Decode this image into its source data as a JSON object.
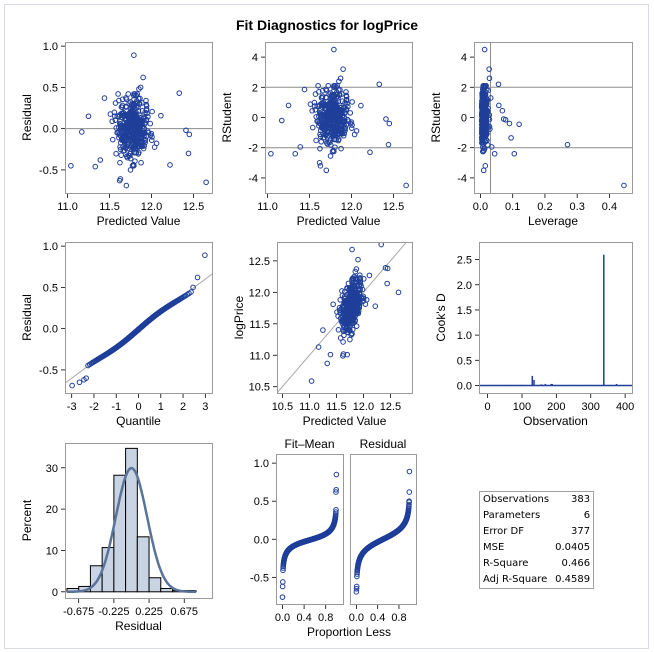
{
  "title": "Fit Diagnostics for logPrice",
  "colors": {
    "marker": "#1f3f9a",
    "ref": "#8c8c8c",
    "bar_fill": "#c8d3e3",
    "curve": "#5a7399",
    "spike": "#1f3f9a",
    "frame": "#9a9a9a"
  },
  "fit_statistics": [
    {
      "label": "Observations",
      "value": "383"
    },
    {
      "label": "Parameters",
      "value": "6"
    },
    {
      "label": "Error DF",
      "value": "377"
    },
    {
      "label": "MSE",
      "value": "0.0405"
    },
    {
      "label": "R-Square",
      "value": "0.466"
    },
    {
      "label": "Adj R-Square",
      "value": "0.4589"
    }
  ],
  "chart_data": [
    {
      "id": "residual-vs-predicted",
      "type": "scatter",
      "xlabel": "Predicted Value",
      "ylabel": "Residual",
      "xlim": [
        10.97,
        12.72
      ],
      "ylim": [
        -0.78,
        1.05
      ],
      "xticks": [
        "11.0",
        "11.5",
        "12.0",
        "12.5"
      ],
      "xtick_values": [
        11.0,
        11.5,
        12.0,
        12.5
      ],
      "yticks": [
        "-0.5",
        "0.0",
        "0.5",
        "1.0"
      ],
      "ytick_values": [
        -0.5,
        0.0,
        0.5,
        1.0
      ],
      "reflines_y": [
        0
      ],
      "n_points": 383,
      "cluster": {
        "x_center": 11.78,
        "x_sd": 0.1,
        "y_sd": 0.17
      },
      "notable_points": [
        [
          11.79,
          0.89
        ],
        [
          11.9,
          0.62
        ],
        [
          11.87,
          0.5
        ],
        [
          11.85,
          0.48
        ],
        [
          12.33,
          0.43
        ],
        [
          11.04,
          -0.45
        ],
        [
          11.33,
          -0.46
        ],
        [
          11.39,
          -0.38
        ],
        [
          11.7,
          -0.69
        ],
        [
          11.63,
          -0.61
        ],
        [
          11.62,
          -0.63
        ],
        [
          11.75,
          -0.5
        ],
        [
          12.65,
          -0.65
        ],
        [
          12.22,
          -0.44
        ],
        [
          12.44,
          -0.3
        ],
        [
          11.17,
          -0.04
        ],
        [
          11.25,
          0.15
        ],
        [
          11.44,
          0.37
        ],
        [
          12.41,
          -0.02
        ],
        [
          12.45,
          -0.07
        ]
      ]
    },
    {
      "id": "rstudent-vs-predicted",
      "type": "scatter",
      "xlabel": "Predicted Value",
      "ylabel": "RStudent",
      "xlim": [
        10.97,
        12.72
      ],
      "ylim": [
        -5.0,
        5.0
      ],
      "xticks": [
        "11.0",
        "11.5",
        "12.0",
        "12.5"
      ],
      "xtick_values": [
        11.0,
        11.5,
        12.0,
        12.5
      ],
      "yticks": [
        "-4",
        "-2",
        "0",
        "2",
        "4"
      ],
      "ytick_values": [
        -4,
        -2,
        0,
        2,
        4
      ],
      "reflines_y": [
        -2,
        0,
        2
      ],
      "n_points": 383,
      "cluster": {
        "x_center": 11.78,
        "x_sd": 0.1,
        "y_sd": 0.85
      },
      "notable_points": [
        [
          11.79,
          4.5
        ],
        [
          11.9,
          3.2
        ],
        [
          11.87,
          2.6
        ],
        [
          11.85,
          2.4
        ],
        [
          12.33,
          2.2
        ],
        [
          11.04,
          -2.4
        ],
        [
          11.33,
          -2.4
        ],
        [
          11.39,
          -1.95
        ],
        [
          11.7,
          -3.5
        ],
        [
          11.63,
          -3.2
        ],
        [
          11.62,
          -3.0
        ],
        [
          11.75,
          -2.55
        ],
        [
          12.65,
          -4.5
        ],
        [
          12.22,
          -2.3
        ],
        [
          12.44,
          -1.8
        ],
        [
          11.17,
          -0.2
        ],
        [
          11.25,
          0.8
        ],
        [
          11.44,
          1.85
        ],
        [
          12.41,
          -0.1
        ],
        [
          12.45,
          -0.4
        ]
      ]
    },
    {
      "id": "rstudent-vs-leverage",
      "type": "scatter",
      "xlabel": "Leverage",
      "ylabel": "RStudent",
      "xlim": [
        -0.02,
        0.47
      ],
      "ylim": [
        -5.0,
        5.0
      ],
      "xticks": [
        "0.0",
        "0.1",
        "0.2",
        "0.3",
        "0.4"
      ],
      "xtick_values": [
        0.0,
        0.1,
        0.2,
        0.3,
        0.4
      ],
      "yticks": [
        "-4",
        "-2",
        "0",
        "2",
        "4"
      ],
      "ytick_values": [
        -4,
        -2,
        0,
        2,
        4
      ],
      "reflines_y": [
        -2,
        2
      ],
      "reflines_x": [
        0.0313
      ],
      "n_points": 383,
      "cluster": {
        "x_center": 0.012,
        "x_sd": 0.007,
        "y_sd": 0.85
      },
      "notable_points": [
        [
          0.013,
          4.5
        ],
        [
          0.027,
          3.2
        ],
        [
          0.028,
          2.6
        ],
        [
          0.056,
          2.2
        ],
        [
          0.057,
          0.8
        ],
        [
          0.068,
          0.45
        ],
        [
          0.072,
          -0.1
        ],
        [
          0.078,
          -0.15
        ],
        [
          0.09,
          -0.4
        ],
        [
          0.12,
          -0.45
        ],
        [
          0.095,
          -1.35
        ],
        [
          0.105,
          -2.4
        ],
        [
          0.27,
          -1.8
        ],
        [
          0.445,
          -4.5
        ],
        [
          0.01,
          -3.5
        ],
        [
          0.015,
          -3.2
        ],
        [
          0.044,
          -2.4
        ],
        [
          0.035,
          -1.95
        ]
      ]
    },
    {
      "id": "qq-residual",
      "type": "scatter",
      "xlabel": "Quantile",
      "ylabel": "Residual",
      "xlim": [
        -3.3,
        3.3
      ],
      "ylim": [
        -0.78,
        1.05
      ],
      "xticks": [
        "-3",
        "-2",
        "-1",
        "0",
        "1",
        "2",
        "3"
      ],
      "xtick_values": [
        -3,
        -2,
        -1,
        0,
        1,
        2,
        3
      ],
      "yticks": [
        "-0.5",
        "0.0",
        "0.5",
        "1.0"
      ],
      "ytick_values": [
        -0.5,
        0.0,
        0.5,
        1.0
      ],
      "reference_line": {
        "intercept": 0.0,
        "slope": 0.2
      },
      "n_points": 383,
      "extremes": [
        [
          -2.98,
          -0.69
        ],
        [
          -2.65,
          -0.65
        ],
        [
          -2.45,
          -0.62
        ],
        [
          -2.35,
          -0.6
        ],
        [
          2.65,
          0.62
        ],
        [
          2.98,
          0.89
        ],
        [
          2.45,
          0.5
        ]
      ]
    },
    {
      "id": "observed-vs-predicted",
      "type": "scatter",
      "xlabel": "Predicted Value",
      "ylabel": "logPrice",
      "xlim": [
        10.4,
        12.9
      ],
      "ylim": [
        10.4,
        12.8
      ],
      "xticks": [
        "10.5",
        "11.0",
        "11.5",
        "12.0",
        "12.5"
      ],
      "xtick_values": [
        10.5,
        11.0,
        11.5,
        12.0,
        12.5
      ],
      "yticks": [
        "10.5",
        "11.0",
        "11.5",
        "12.0",
        "12.5"
      ],
      "ytick_values": [
        10.5,
        11.0,
        11.5,
        12.0,
        12.5
      ],
      "reference_line": {
        "intercept": 0.0,
        "slope": 1.0
      },
      "n_points": 383
    },
    {
      "id": "cooks-d",
      "type": "bar",
      "xlabel": "Observation",
      "ylabel": "Cook's D",
      "xlim": [
        -25,
        420
      ],
      "ylim": [
        -0.15,
        2.85
      ],
      "xticks": [
        "0",
        "100",
        "200",
        "300",
        "400"
      ],
      "xtick_values": [
        0,
        100,
        200,
        300,
        400
      ],
      "yticks": [
        "0.0",
        "0.5",
        "1.0",
        "1.5",
        "2.0",
        "2.5"
      ],
      "ytick_values": [
        0.0,
        0.5,
        1.0,
        1.5,
        2.0,
        2.5
      ],
      "spikes": [
        [
          130,
          0.19
        ],
        [
          135,
          0.11
        ],
        [
          155,
          0.02
        ],
        [
          158,
          0.02
        ],
        [
          168,
          0.03
        ],
        [
          185,
          0.03
        ],
        [
          188,
          0.03
        ],
        [
          338,
          2.6
        ],
        [
          375,
          0.03
        ],
        [
          5,
          0.01
        ],
        [
          48,
          0.01
        ],
        [
          62,
          0.01
        ],
        [
          95,
          0.01
        ],
        [
          100,
          0.01
        ],
        [
          250,
          0.01
        ],
        [
          300,
          0.01
        ],
        [
          360,
          0.01
        ]
      ]
    },
    {
      "id": "residual-histogram",
      "type": "bar",
      "xlabel": "Residual",
      "ylabel": "Percent",
      "xlim": [
        -0.85,
        1.03
      ],
      "ylim": [
        -1.5,
        36
      ],
      "xticks": [
        "-0.675",
        "-0.225",
        "0.225",
        "0.675"
      ],
      "xtick_values": [
        -0.675,
        -0.225,
        0.225,
        0.675
      ],
      "yticks": [
        "0",
        "10",
        "20",
        "30"
      ],
      "ytick_values": [
        0,
        10,
        20,
        30
      ],
      "bin_width": 0.15,
      "bins_left": [
        -0.825,
        -0.675,
        -0.525,
        -0.375,
        -0.225,
        -0.075,
        0.075,
        0.225,
        0.375,
        0.525,
        0.675
      ],
      "values": [
        0.8,
        1.3,
        6.3,
        10.7,
        28.2,
        34.7,
        13.3,
        3.4,
        0.8,
        0.3,
        0.3
      ],
      "normal_curve": {
        "mean": 0.0,
        "sd": 0.2
      }
    },
    {
      "id": "residual-fit-spread",
      "type": "scatter",
      "xlabel": "Proportion Less",
      "ylabel": "",
      "panels": [
        "Fit–Mean",
        "Residual"
      ],
      "xlim": [
        -0.12,
        1.12
      ],
      "ylim": [
        -0.85,
        1.12
      ],
      "xticks": [
        "0.0",
        "0.4",
        "0.8"
      ],
      "xtick_values": [
        0.0,
        0.4,
        0.8
      ],
      "yticks": [
        "-0.5",
        "0.0",
        "0.5",
        "1.0"
      ],
      "ytick_values": [
        -0.5,
        0.0,
        0.5,
        1.0
      ],
      "n_points": 383,
      "fit_mean_extremes": [
        [
          0.0,
          -0.76
        ],
        [
          0.003,
          -0.62
        ],
        [
          0.006,
          -0.56
        ],
        [
          0.997,
          0.85
        ],
        [
          0.994,
          0.65
        ],
        [
          0.99,
          0.62
        ]
      ],
      "residual_extremes": [
        [
          0.0,
          -0.69
        ],
        [
          0.003,
          -0.65
        ],
        [
          0.006,
          -0.62
        ],
        [
          0.997,
          0.89
        ],
        [
          0.994,
          0.62
        ],
        [
          0.99,
          0.5
        ]
      ]
    }
  ]
}
